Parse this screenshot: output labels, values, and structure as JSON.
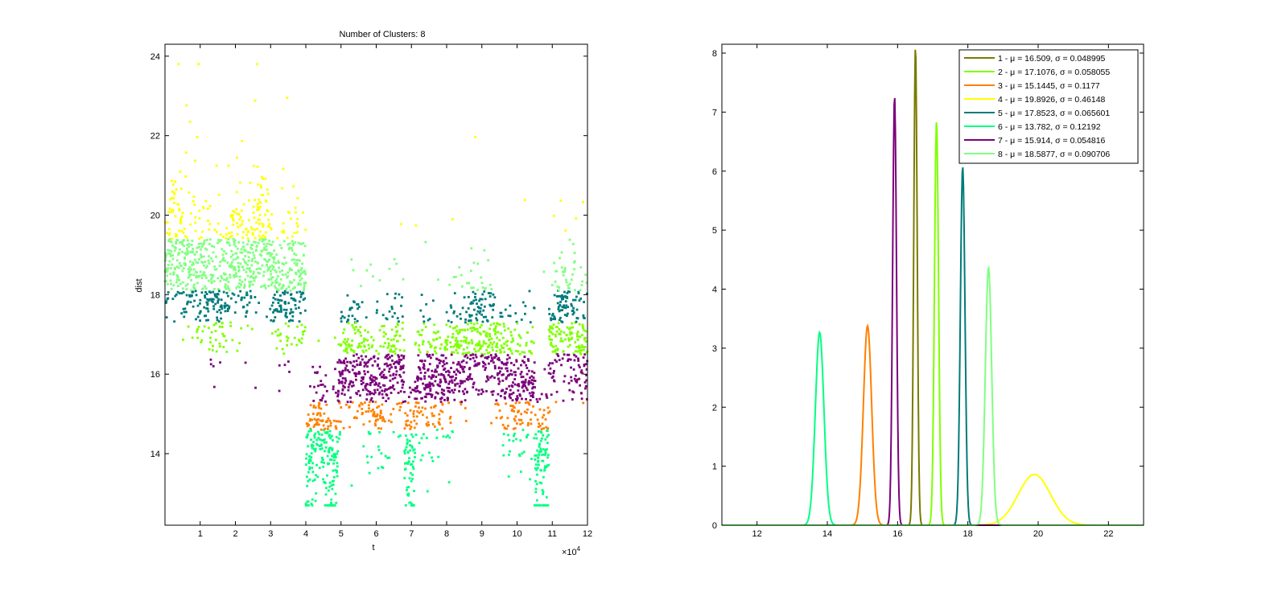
{
  "chart_data": [
    {
      "type": "scatter",
      "title": "Number of Clusters: 8",
      "xlabel": "t",
      "ylabel": "dist",
      "x_multiplier_label": "×10",
      "x_multiplier_exp": "4",
      "xlim": [
        0,
        12
      ],
      "ylim": [
        12.2,
        24.3
      ],
      "xticks": [
        1,
        2,
        3,
        4,
        5,
        6,
        7,
        8,
        9,
        10,
        11,
        12
      ],
      "yticks": [
        14,
        16,
        18,
        20,
        22,
        24
      ],
      "x_units_note_ignore": "",
      "series": [
        {
          "color": "#7a7a00",
          "y_range": [
            16.0,
            16.5
          ]
        },
        {
          "color": "#80ff00",
          "y_range": [
            16.5,
            17.3
          ]
        },
        {
          "color": "#ff8000",
          "y_range": [
            14.2,
            15.5
          ]
        },
        {
          "color": "#ffff00",
          "y_range": [
            19.4,
            23.8
          ]
        },
        {
          "color": "#007a7a",
          "y_range": [
            17.3,
            18.1
          ]
        },
        {
          "color": "#00ff80",
          "y_range": [
            12.8,
            14.6
          ]
        },
        {
          "color": "#7a007a",
          "y_range": [
            15.3,
            16.5
          ]
        },
        {
          "color": "#80ff80",
          "y_range": [
            18.1,
            19.4
          ]
        }
      ]
    },
    {
      "type": "line",
      "xlim": [
        11,
        23
      ],
      "ylim": [
        0,
        8.15
      ],
      "xticks": [
        12,
        14,
        16,
        18,
        20,
        22
      ],
      "yticks": [
        0,
        1,
        2,
        3,
        4,
        5,
        6,
        7,
        8
      ],
      "series": [
        {
          "name": "1 - μ = 16.509, σ = 0.048995",
          "mu": 16.509,
          "sigma": 0.048995,
          "color": "#7a7a00"
        },
        {
          "name": "2 - μ = 17.1076, σ = 0.058055",
          "mu": 17.1076,
          "sigma": 0.058055,
          "color": "#80ff00"
        },
        {
          "name": "3 - μ = 15.1445, σ = 0.1177",
          "mu": 15.1445,
          "sigma": 0.1177,
          "color": "#ff8000"
        },
        {
          "name": "4 - μ = 19.8926, σ = 0.46148",
          "mu": 19.8926,
          "sigma": 0.46148,
          "color": "#ffff00"
        },
        {
          "name": "5 - μ = 17.8523, σ = 0.065601",
          "mu": 17.8523,
          "sigma": 0.065601,
          "color": "#007a7a"
        },
        {
          "name": "6 - μ = 13.782, σ = 0.12192",
          "mu": 13.782,
          "sigma": 0.12192,
          "color": "#00ff80"
        },
        {
          "name": "7 - μ = 15.914, σ = 0.054816",
          "mu": 15.914,
          "sigma": 0.054816,
          "color": "#7a007a"
        },
        {
          "name": "8 - μ = 18.5877, σ = 0.090706",
          "mu": 18.5877,
          "sigma": 0.090706,
          "color": "#80ff80"
        }
      ],
      "peak_values": [
        8.12,
        6.85,
        3.38,
        0.86,
        6.08,
        3.27,
        7.28,
        4.37
      ],
      "legend_location": "top-right"
    }
  ]
}
